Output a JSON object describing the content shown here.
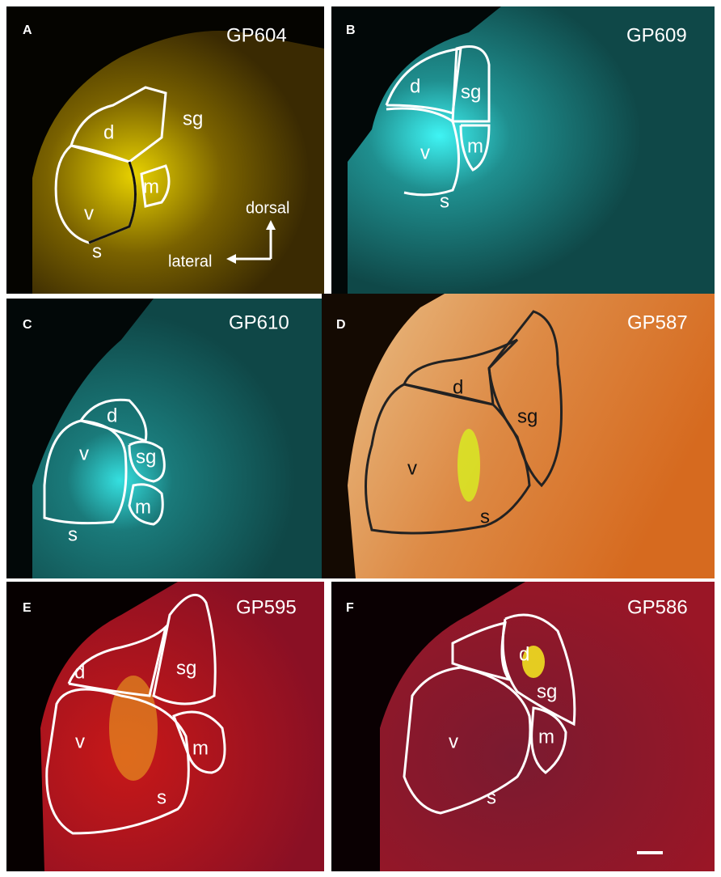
{
  "panels": [
    {
      "letter": "A",
      "code": "GP604",
      "regions": [
        "d",
        "sg",
        "v",
        "m",
        "s"
      ]
    },
    {
      "letter": "B",
      "code": "GP609",
      "regions": [
        "d",
        "sg",
        "v",
        "m",
        "s"
      ]
    },
    {
      "letter": "C",
      "code": "GP610",
      "regions": [
        "d",
        "v",
        "sg",
        "m",
        "s"
      ]
    },
    {
      "letter": "D",
      "code": "GP587",
      "regions": [
        "d",
        "sg",
        "v",
        "s"
      ]
    },
    {
      "letter": "E",
      "code": "GP595",
      "regions": [
        "d",
        "sg",
        "v",
        "m",
        "s"
      ]
    },
    {
      "letter": "F",
      "code": "GP586",
      "regions": [
        "d",
        "sg",
        "v",
        "m",
        "s"
      ]
    }
  ],
  "orientation": {
    "dorsal": "dorsal",
    "lateral": "lateral"
  }
}
